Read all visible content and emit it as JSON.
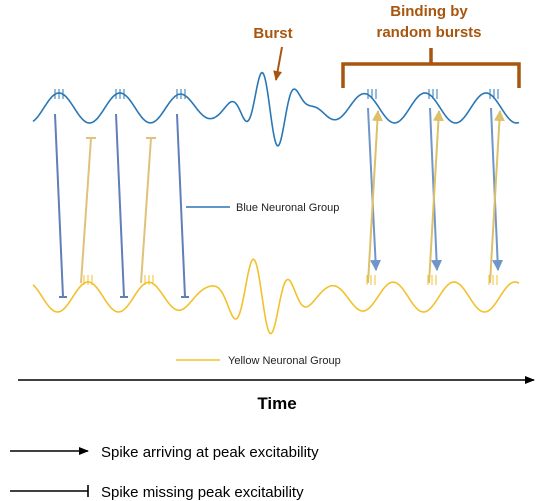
{
  "annotations": {
    "burst": "Burst",
    "binding_line1": "Binding by",
    "binding_line2": "random bursts"
  },
  "legend": {
    "blue_group": "Blue Neuronal Group",
    "yellow_group": "Yellow Neuronal Group"
  },
  "axis": {
    "time": "Time"
  },
  "key": {
    "arrow_label": "Spike arriving at peak excitability",
    "tee_label": "Spike missing peak excitability"
  },
  "colors": {
    "blue": "#2a77b5",
    "blue_arrow": "#6f95c9",
    "yellow": "#f2c12e",
    "yellow_arrow": "#dcc06a",
    "brown": "#a8560f",
    "tee_blue": "#5f7fb6",
    "tee_yellow": "#e0c27c"
  }
}
